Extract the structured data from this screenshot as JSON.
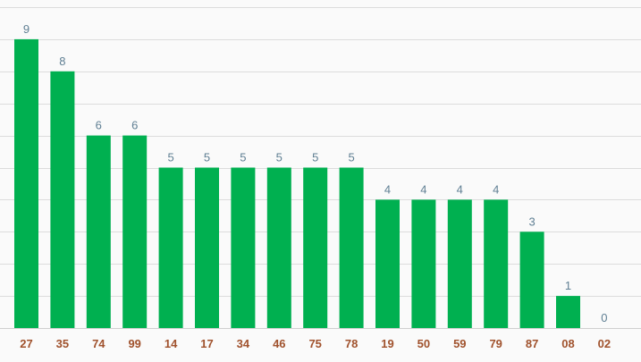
{
  "chart_data": {
    "type": "bar",
    "categories": [
      "27",
      "35",
      "74",
      "99",
      "14",
      "17",
      "34",
      "46",
      "75",
      "78",
      "19",
      "50",
      "59",
      "79",
      "87",
      "08",
      "02"
    ],
    "values": [
      9,
      8,
      6,
      6,
      5,
      5,
      5,
      5,
      5,
      5,
      4,
      4,
      4,
      4,
      3,
      1,
      0
    ],
    "ylim": [
      0,
      10
    ],
    "grid": true,
    "show_value_labels": true,
    "colors": {
      "bar": "#00b050",
      "value_label": "#5f7f93",
      "category_label": "#a0522d",
      "grid": "#dcdcdc",
      "background": "#fafafa"
    }
  }
}
